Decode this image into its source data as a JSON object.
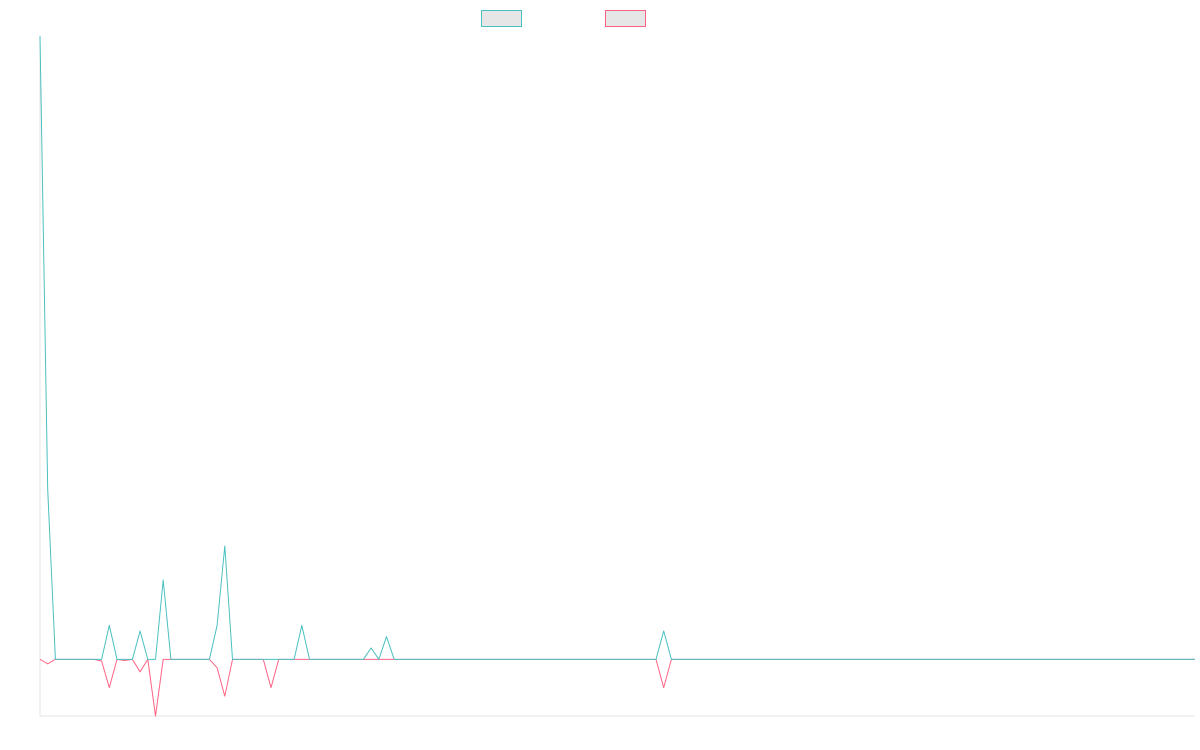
{
  "chart_data": {
    "type": "line",
    "title": "",
    "xlabel": "",
    "ylabel": "",
    "legend": {
      "placement": "top-center",
      "entries": [
        {
          "label": "",
          "color": "#4bc0c0"
        },
        {
          "label": "",
          "color": "#ff6384"
        }
      ]
    },
    "grid": false,
    "axes_visible": true,
    "tick_labels_visible": false,
    "xlim": [
      0,
      150
    ],
    "ylim": [
      -10,
      110
    ],
    "x": [
      0,
      1,
      2,
      3,
      4,
      5,
      6,
      7,
      8,
      9,
      10,
      11,
      12,
      13,
      14,
      15,
      16,
      17,
      18,
      19,
      20,
      21,
      22,
      23,
      24,
      25,
      26,
      27,
      28,
      29,
      30,
      31,
      32,
      33,
      34,
      35,
      36,
      37,
      38,
      39,
      40,
      41,
      42,
      43,
      44,
      45,
      46,
      47,
      48,
      49,
      50,
      51,
      52,
      53,
      54,
      55,
      56,
      57,
      58,
      59,
      60,
      61,
      62,
      63,
      64,
      65,
      66,
      67,
      68,
      69,
      70,
      71,
      72,
      73,
      74,
      75,
      76,
      77,
      78,
      79,
      80,
      81,
      82,
      83,
      84,
      85,
      86,
      87,
      88,
      89,
      90,
      91,
      92,
      93,
      94,
      95,
      96,
      97,
      98,
      99,
      100,
      101,
      102,
      103,
      104,
      105,
      106,
      107,
      108,
      109,
      110,
      111,
      112,
      113,
      114,
      115,
      116,
      117,
      118,
      119,
      120,
      121,
      122,
      123,
      124,
      125,
      126,
      127,
      128,
      129,
      130,
      131,
      132,
      133,
      134,
      135,
      136,
      137,
      138,
      139,
      140,
      141,
      142,
      143,
      144,
      145,
      146,
      147,
      148,
      149,
      150
    ],
    "series": [
      {
        "color": "#4bc0c0",
        "values": [
          110,
          30,
          0,
          0,
          0,
          0,
          0,
          0,
          0,
          6,
          0,
          0,
          0,
          5,
          0,
          0,
          14,
          0,
          0,
          0,
          0,
          0,
          0,
          6,
          20,
          0,
          0,
          0,
          0,
          0,
          0,
          0,
          0,
          0,
          6,
          0,
          0,
          0,
          0,
          0,
          0,
          0,
          0,
          2,
          0,
          4,
          0,
          0,
          0,
          0,
          0,
          0,
          0,
          0,
          0,
          0,
          0,
          0,
          0,
          0,
          0,
          0,
          0,
          0,
          0,
          0,
          0,
          0,
          0,
          0,
          0,
          0,
          0,
          0,
          0,
          0,
          0,
          0,
          0,
          0,
          0,
          5,
          0,
          0,
          0,
          0,
          0,
          0,
          0,
          0,
          0,
          0,
          0,
          0,
          0,
          0,
          0,
          0,
          0,
          0,
          0,
          0,
          0,
          0,
          0,
          0,
          0,
          0,
          0,
          0,
          0,
          0,
          0,
          0,
          0,
          0,
          0,
          0,
          0,
          0,
          0,
          0,
          0,
          0,
          0,
          0,
          0,
          0,
          0,
          0,
          0,
          0,
          0,
          0,
          0,
          0,
          0,
          0,
          0,
          0,
          0,
          0,
          0,
          0,
          0,
          0,
          0,
          0,
          0,
          0,
          0
        ]
      },
      {
        "color": "#ff6384",
        "values": [
          0,
          -0.8,
          0,
          0,
          0,
          0,
          0,
          0,
          -0.3,
          -5,
          0,
          -0.2,
          0,
          -2.2,
          0,
          -10,
          0,
          0,
          0,
          0,
          0,
          0,
          0,
          -1.5,
          -6.5,
          0,
          0,
          0,
          0,
          0,
          -5,
          0,
          0,
          0,
          0,
          0,
          0,
          0,
          0,
          0,
          0,
          0,
          0,
          0,
          0,
          0,
          0,
          0,
          0,
          0,
          0,
          0,
          0,
          0,
          0,
          0,
          0,
          0,
          0,
          0,
          0,
          0,
          0,
          0,
          0,
          0,
          0,
          0,
          0,
          0,
          0,
          0,
          0,
          0,
          0,
          0,
          0,
          0,
          0,
          0,
          0,
          -5,
          0,
          0,
          0,
          0,
          0,
          0,
          0,
          0,
          0,
          0,
          0,
          0,
          0,
          0,
          0,
          0,
          0,
          0,
          0,
          0,
          0,
          0,
          0,
          0,
          0,
          0,
          0,
          0,
          0,
          0,
          0,
          0,
          0,
          0,
          0,
          0,
          0,
          0,
          0,
          0,
          0,
          0,
          0,
          0,
          0,
          0,
          0,
          0,
          0,
          0,
          0,
          0,
          0,
          0,
          0,
          0,
          0,
          0,
          0,
          0,
          0,
          0,
          0,
          0,
          0,
          0,
          0,
          0,
          0
        ]
      }
    ]
  }
}
